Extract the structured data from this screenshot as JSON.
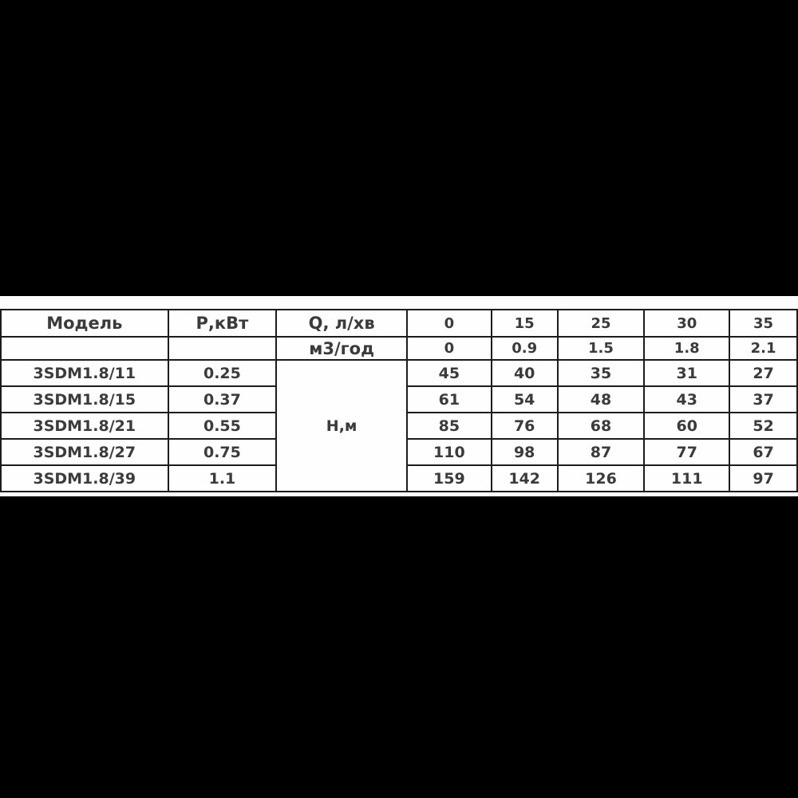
{
  "colors": {
    "background_bars": "#000000",
    "band_background": "#fdfdfd",
    "table_border": "#1c1c1c",
    "text": "#3b3b3b"
  },
  "table": {
    "header": {
      "model_label": "Модель",
      "power_label": "Р,кВт",
      "flow_lmin_label": "Q, л/хв",
      "flow_m3h_label": "м3/год",
      "head_unit_label": "Н,м",
      "flow_lmin_values": [
        "0",
        "15",
        "25",
        "30",
        "35"
      ],
      "flow_m3h_values": [
        "0",
        "0.9",
        "1.5",
        "1.8",
        "2.1"
      ]
    },
    "rows": [
      {
        "model": "3SDM1.8/11",
        "power": "0.25",
        "heads": [
          "45",
          "40",
          "35",
          "31",
          "27"
        ]
      },
      {
        "model": "3SDM1.8/15",
        "power": "0.37",
        "heads": [
          "61",
          "54",
          "48",
          "43",
          "37"
        ]
      },
      {
        "model": "3SDM1.8/21",
        "power": "0.55",
        "heads": [
          "85",
          "76",
          "68",
          "60",
          "52"
        ]
      },
      {
        "model": "3SDM1.8/27",
        "power": "0.75",
        "heads": [
          "110",
          "98",
          "87",
          "77",
          "67"
        ]
      },
      {
        "model": "3SDM1.8/39",
        "power": "1.1",
        "heads": [
          "159",
          "142",
          "126",
          "111",
          "97"
        ]
      }
    ]
  }
}
